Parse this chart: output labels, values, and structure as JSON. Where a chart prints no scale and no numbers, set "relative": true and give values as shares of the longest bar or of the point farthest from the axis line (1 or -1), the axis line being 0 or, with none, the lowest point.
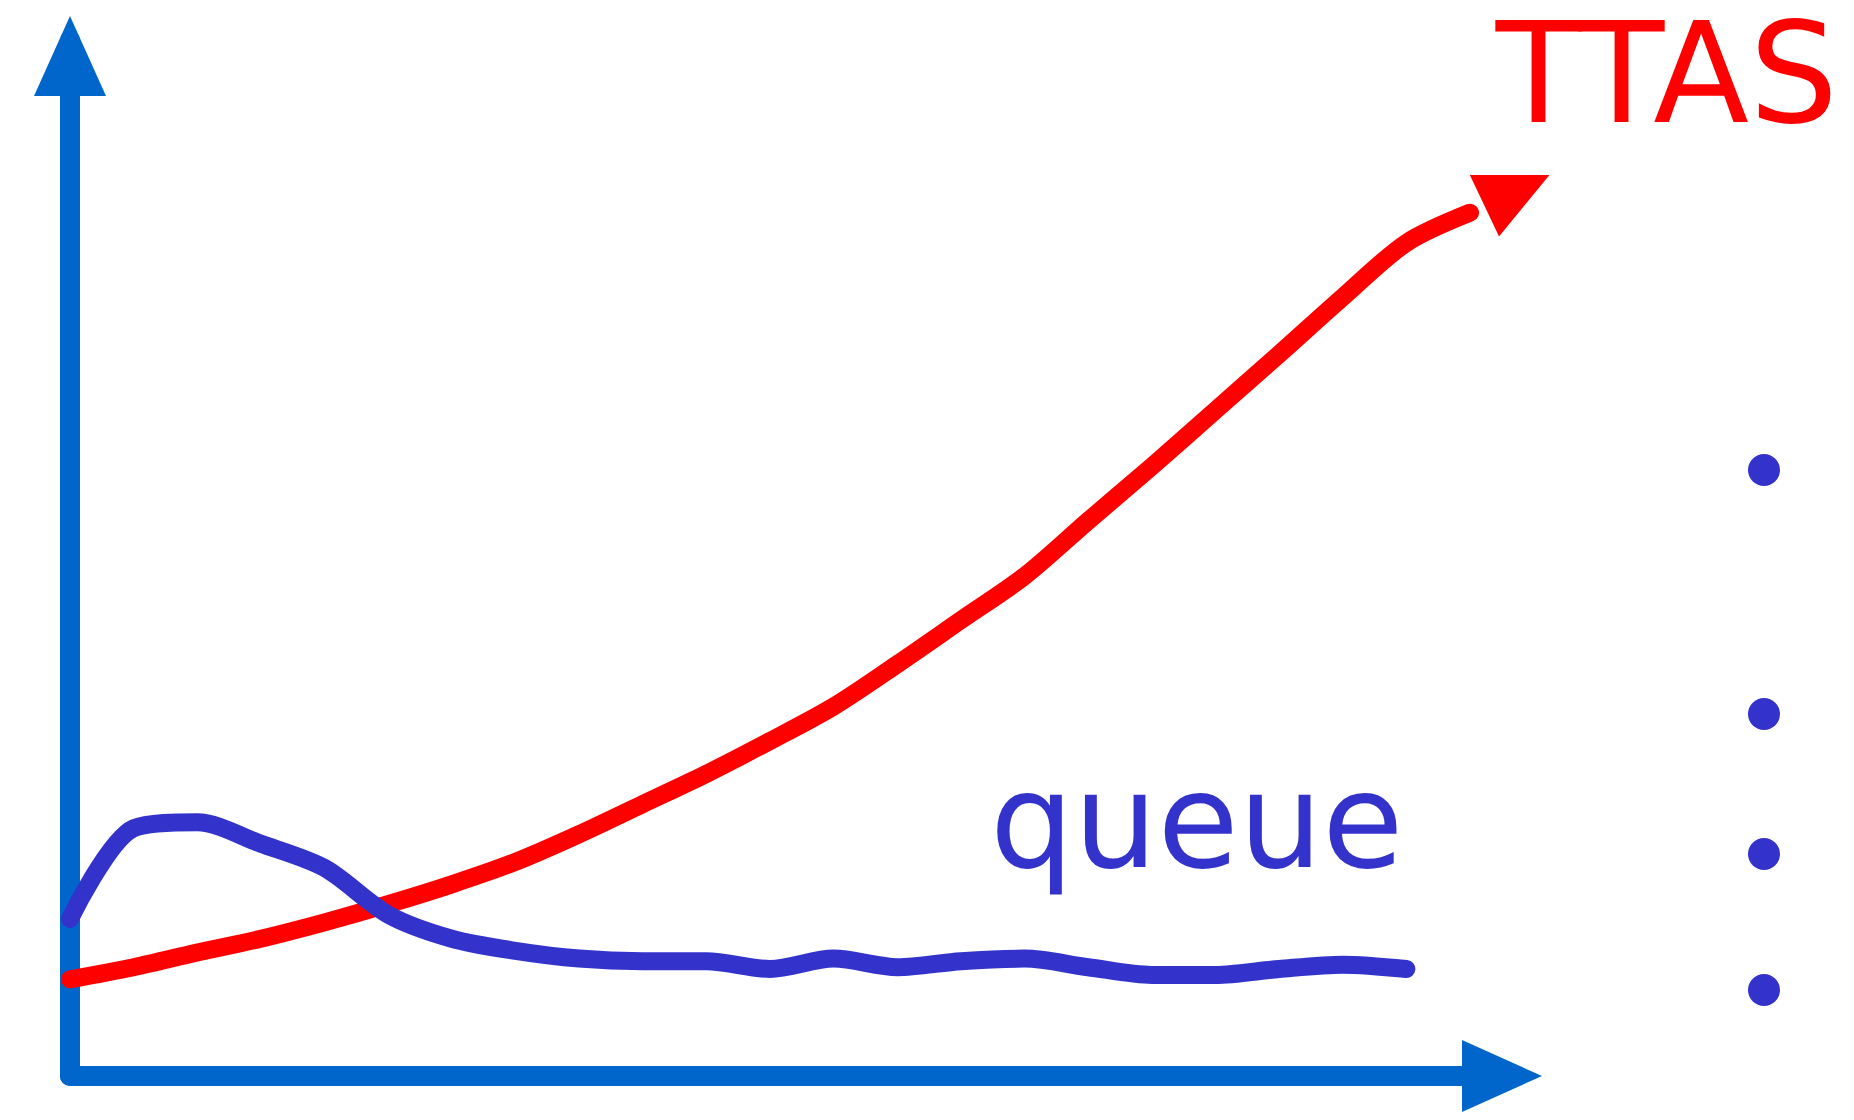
{
  "chart_data": {
    "type": "line",
    "relative": true,
    "categories": [
      null,
      null,
      null,
      null,
      null,
      null,
      null,
      null,
      null,
      null,
      null,
      null,
      null,
      null,
      null,
      null,
      null,
      null,
      null,
      null,
      null,
      null,
      null
    ],
    "series": [
      {
        "name": "TTAS",
        "color": "#ff0000",
        "values": [
          0.112,
          0.126,
          0.143,
          0.159,
          0.178,
          0.199,
          0.222,
          0.248,
          0.28,
          0.315,
          0.35,
          0.388,
          0.428,
          0.477,
          0.528,
          0.579,
          0.643,
          0.706,
          0.771,
          0.836,
          0.902,
          0.965,
          1
        ]
      },
      {
        "name": "queue",
        "color": "#3333cc",
        "values": [
          0.182,
          0.287,
          0.294,
          0.269,
          0.241,
          0.187,
          0.159,
          0.145,
          0.136,
          0.133,
          0.133,
          0.124,
          0.136,
          0.126,
          0.133,
          0.136,
          0.126,
          0.117,
          0.117,
          0.124,
          0.129,
          0.124,
          null
        ]
      }
    ],
    "grid": false,
    "legend": false
  }
}
